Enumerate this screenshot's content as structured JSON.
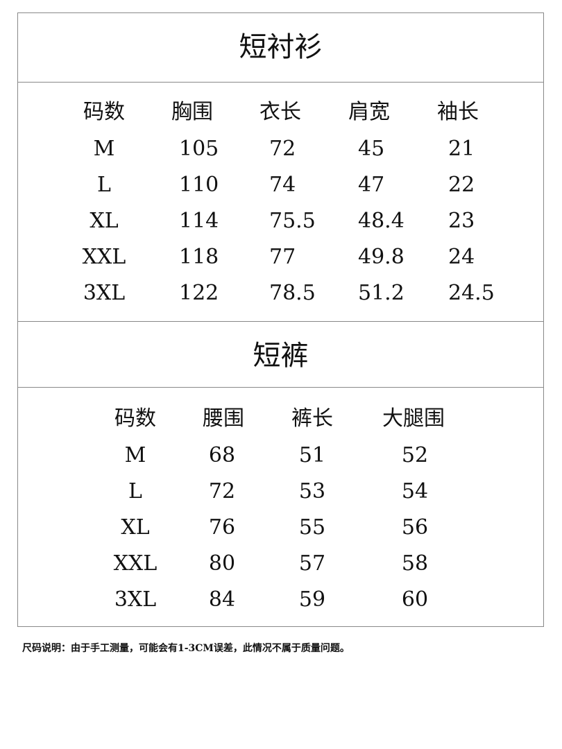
{
  "shirt": {
    "title": "短衬衫",
    "headers": [
      "码数",
      "胸围",
      "衣长",
      "肩宽",
      "袖长"
    ],
    "rows": [
      [
        "M",
        "105",
        "72",
        "45",
        "21"
      ],
      [
        "L",
        "110",
        "74",
        "47",
        "22"
      ],
      [
        "XL",
        "114",
        "75.5",
        "48.4",
        "23"
      ],
      [
        "XXL",
        "118",
        "77",
        "49.8",
        "24"
      ],
      [
        "3XL",
        "122",
        "78.5",
        "51.2",
        "24.5"
      ]
    ]
  },
  "shorts": {
    "title": "短裤",
    "headers": [
      "码数",
      "腰围",
      "裤长",
      "大腿围"
    ],
    "rows": [
      [
        "M",
        "68",
        "51",
        "52"
      ],
      [
        "L",
        "72",
        "53",
        "54"
      ],
      [
        "XL",
        "76",
        "55",
        "56"
      ],
      [
        "XXL",
        "80",
        "57",
        "58"
      ],
      [
        "3XL",
        "84",
        "59",
        "60"
      ]
    ]
  },
  "note": "尺码说明：由于手工测量，可能会有1-3CM误差，此情况不属于质量问题。"
}
